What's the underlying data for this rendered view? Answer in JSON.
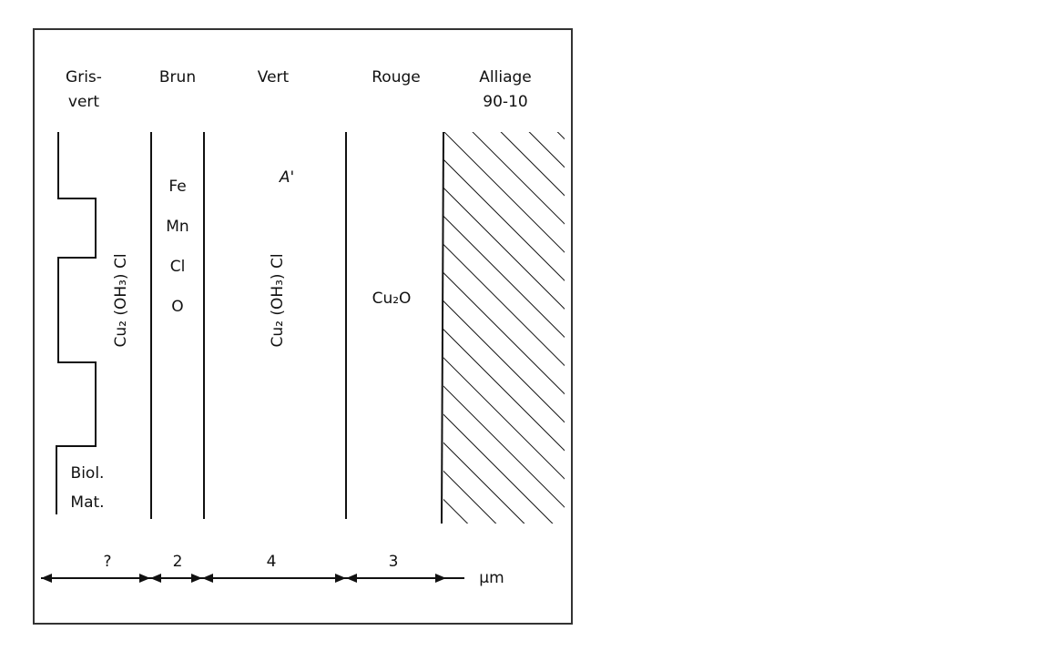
{
  "columns": [
    {
      "header": [
        "Gris-",
        "vert"
      ],
      "label": "Cu₂ (OH₃) Cl",
      "note": [
        "Biol.",
        "Mat."
      ],
      "thickness": "?"
    },
    {
      "header": [
        "Brun"
      ],
      "elements": [
        "Fe",
        "Mn",
        "Cl",
        "O"
      ],
      "thickness": "2"
    },
    {
      "header": [
        "Vert"
      ],
      "label": "Cu₂ (OH₃) Cl",
      "mark": "A'",
      "thickness": "4"
    },
    {
      "header": [
        "Rouge"
      ],
      "label": "Cu₂O",
      "thickness": "3"
    },
    {
      "header": [
        "Alliage",
        "90-10"
      ]
    }
  ],
  "unit": "µm"
}
